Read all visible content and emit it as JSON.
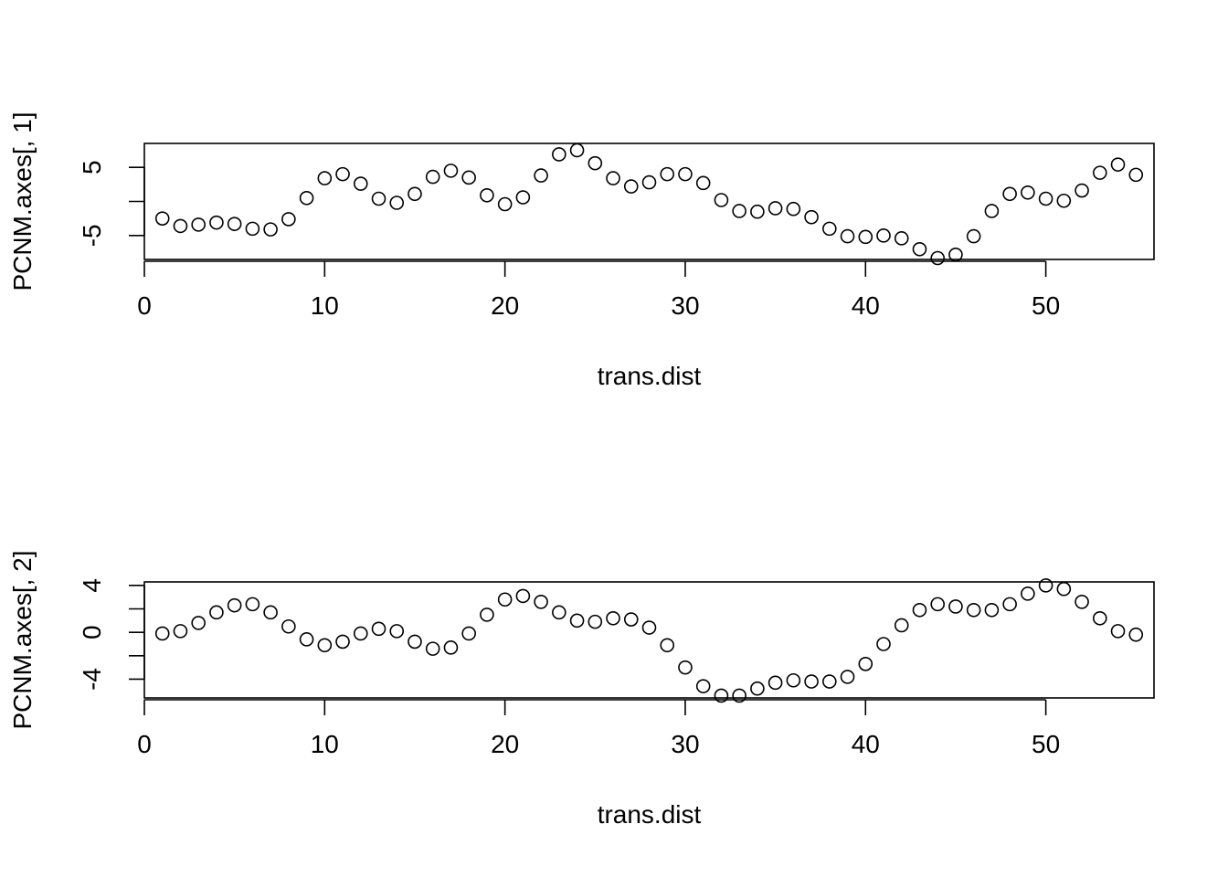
{
  "figure": {
    "background": "#ffffff",
    "point_style": "open-circle",
    "point_color": "#000000"
  },
  "chart_data": [
    {
      "type": "scatter",
      "title": "",
      "xlabel": "trans.dist",
      "ylabel": "PCNM.axes[, 1]",
      "xlim": [
        0,
        56
      ],
      "ylim": [
        -8.5,
        8.5
      ],
      "xticks": [
        0,
        10,
        20,
        30,
        40,
        50
      ],
      "xtick_labels": [
        "0",
        "10",
        "20",
        "30",
        "40",
        "50"
      ],
      "yticks": [
        -5,
        0,
        5
      ],
      "ytick_labels": [
        "-5",
        "",
        "5"
      ],
      "grid": false,
      "legend": "none",
      "x": [
        1,
        2,
        3,
        4,
        5,
        6,
        7,
        8,
        9,
        10,
        11,
        12,
        13,
        14,
        15,
        16,
        17,
        18,
        19,
        20,
        21,
        22,
        23,
        24,
        25,
        26,
        27,
        28,
        29,
        30,
        31,
        32,
        33,
        34,
        35,
        36,
        37,
        38,
        39,
        40,
        41,
        42,
        43,
        44,
        45,
        46,
        47,
        48,
        49,
        50,
        51,
        52,
        53,
        54,
        55
      ],
      "y": [
        -2.5,
        -3.6,
        -3.4,
        -3.1,
        -3.3,
        -4.0,
        -4.1,
        -2.6,
        0.5,
        3.4,
        4.0,
        2.6,
        0.4,
        -0.2,
        1.1,
        3.6,
        4.5,
        3.5,
        0.9,
        -0.4,
        0.6,
        3.8,
        6.9,
        7.5,
        5.6,
        3.4,
        2.2,
        2.8,
        4.0,
        4.0,
        2.7,
        0.2,
        -1.4,
        -1.5,
        -1.0,
        -1.1,
        -2.3,
        -4.0,
        -5.1,
        -5.2,
        -5.0,
        -5.4,
        -7.0,
        -8.3,
        -7.8,
        -5.1,
        -1.4,
        1.1,
        1.3,
        0.4,
        0.1,
        1.6,
        4.2,
        5.4,
        3.9
      ]
    },
    {
      "type": "scatter",
      "title": "",
      "xlabel": "trans.dist",
      "ylabel": "PCNM.axes[, 2]",
      "xlim": [
        0,
        56
      ],
      "ylim": [
        -5.6,
        4.3
      ],
      "xticks": [
        0,
        10,
        20,
        30,
        40,
        50
      ],
      "xtick_labels": [
        "0",
        "10",
        "20",
        "30",
        "40",
        "50"
      ],
      "yticks": [
        -4,
        -2,
        0,
        2,
        4
      ],
      "ytick_labels": [
        "-4",
        "",
        "0",
        "",
        "4"
      ],
      "grid": false,
      "legend": "none",
      "x": [
        1,
        2,
        3,
        4,
        5,
        6,
        7,
        8,
        9,
        10,
        11,
        12,
        13,
        14,
        15,
        16,
        17,
        18,
        19,
        20,
        21,
        22,
        23,
        24,
        25,
        26,
        27,
        28,
        29,
        30,
        31,
        32,
        33,
        34,
        35,
        36,
        37,
        38,
        39,
        40,
        41,
        42,
        43,
        44,
        45,
        46,
        47,
        48,
        49,
        50,
        51,
        52,
        53,
        54,
        55
      ],
      "y": [
        -0.1,
        0.1,
        0.8,
        1.7,
        2.3,
        2.4,
        1.7,
        0.5,
        -0.6,
        -1.1,
        -0.8,
        -0.1,
        0.3,
        0.1,
        -0.8,
        -1.4,
        -1.3,
        -0.1,
        1.5,
        2.8,
        3.1,
        2.6,
        1.7,
        1.0,
        0.9,
        1.2,
        1.1,
        0.4,
        -1.1,
        -3.0,
        -4.6,
        -5.4,
        -5.4,
        -4.8,
        -4.3,
        -4.1,
        -4.2,
        -4.2,
        -3.8,
        -2.7,
        -1.0,
        0.6,
        1.9,
        2.4,
        2.2,
        1.9,
        1.9,
        2.4,
        3.3,
        4.0,
        3.7,
        2.6,
        1.2,
        0.1,
        -0.2
      ]
    }
  ]
}
